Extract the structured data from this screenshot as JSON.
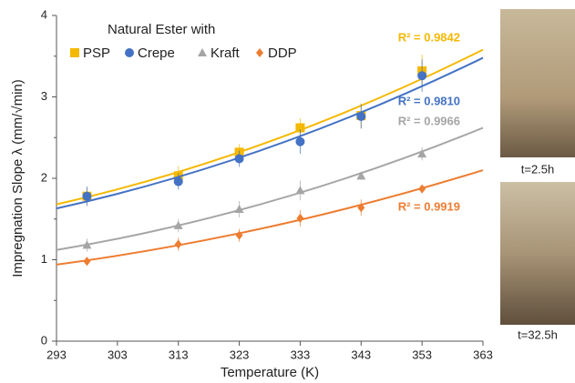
{
  "chart_data": {
    "type": "scatter",
    "x_label": "Temperature (K)",
    "y_label": "Impregnation Slope λ (mm/√min)",
    "legend_title": "Natural Ester with",
    "xlim": [
      293,
      363
    ],
    "xticks": [
      293,
      303,
      313,
      323,
      333,
      343,
      353,
      363
    ],
    "ylim": [
      0,
      4
    ],
    "yticks": [
      0,
      1,
      2,
      3,
      4
    ],
    "x": [
      298,
      313,
      323,
      333,
      343,
      353
    ],
    "series": [
      {
        "name": "PSP",
        "color": "#f5b800",
        "marker": "square",
        "values": [
          1.78,
          2.03,
          2.32,
          2.62,
          2.77,
          3.32
        ],
        "errors": [
          0.1,
          0.12,
          0.1,
          0.12,
          0.15,
          0.2
        ],
        "fit": {
          "x": [
            293,
            363
          ],
          "values": [
            1.68,
            3.58
          ]
        },
        "r2_label": "R² = 0.9842"
      },
      {
        "name": "Crepe",
        "color": "#4472c4",
        "marker": "circle",
        "values": [
          1.78,
          1.96,
          2.24,
          2.45,
          2.76,
          3.26
        ],
        "errors": [
          0.12,
          0.1,
          0.1,
          0.15,
          0.15,
          0.2
        ],
        "fit": {
          "x": [
            293,
            363
          ],
          "values": [
            1.63,
            3.48
          ]
        },
        "r2_label": "R² = 0.9810"
      },
      {
        "name": "Kraft",
        "color": "#a5a5a5",
        "marker": "triangle",
        "values": [
          1.18,
          1.42,
          1.62,
          1.85,
          2.03,
          2.3
        ],
        "errors": [
          0.08,
          0.08,
          0.1,
          0.12,
          0.05,
          0.08
        ],
        "fit": {
          "x": [
            293,
            363
          ],
          "values": [
            1.12,
            2.62
          ]
        },
        "r2_label": "R² = 0.9966"
      },
      {
        "name": "DDP",
        "color": "#ed7d31",
        "marker": "diamond",
        "values": [
          0.98,
          1.19,
          1.3,
          1.51,
          1.64,
          1.87
        ],
        "errors": [
          0.05,
          0.08,
          0.08,
          0.1,
          0.1,
          0.05
        ],
        "fit": {
          "x": [
            293,
            363
          ],
          "values": [
            0.94,
            2.1
          ]
        },
        "r2_label": "R² = 0.9919"
      }
    ],
    "photo_captions": [
      "t=2.5h",
      "t=32.5h"
    ]
  }
}
